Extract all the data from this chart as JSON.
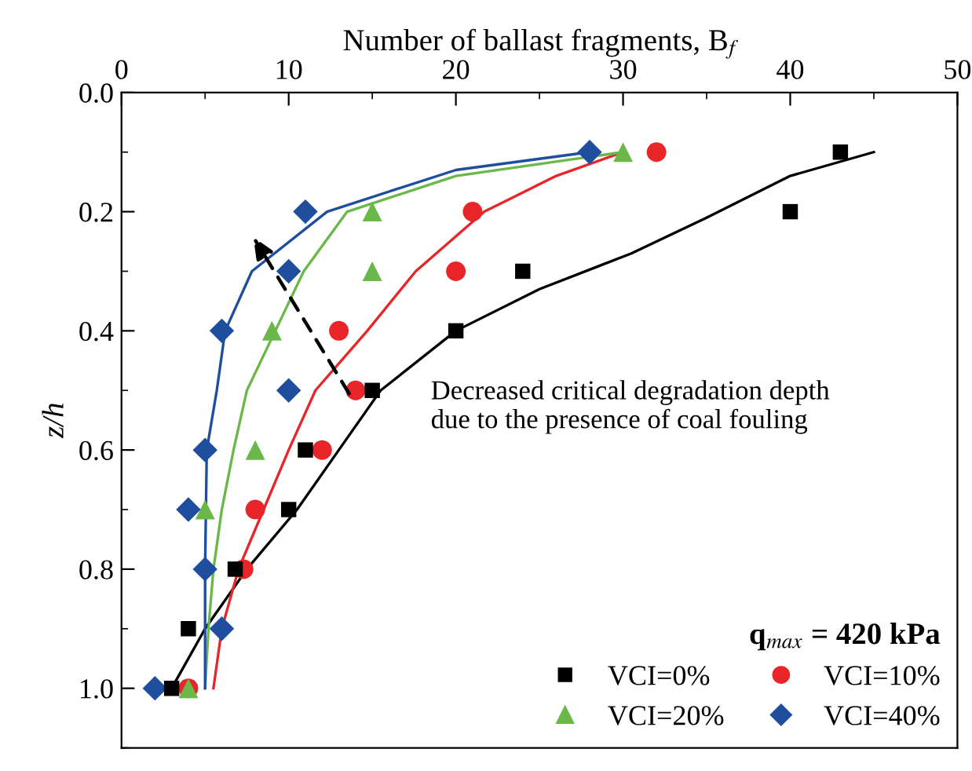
{
  "chart_data": {
    "type": "scatter",
    "xlabel": "Number of ballast fragments, B$_{f}$",
    "ylabel": "z/h",
    "legend_title": "q$_{max}$ = 420 kPa",
    "legend": "bottom right",
    "xlim": [
      0,
      50
    ],
    "xticks": [
      0,
      10,
      20,
      30,
      40,
      50
    ],
    "ylim": [
      1.1,
      0.0
    ],
    "yticks": [
      {
        "value": 0,
        "label": "0.0"
      },
      {
        "value": 0.2,
        "label": "0.2"
      },
      {
        "value": 0.4,
        "label": "0.4"
      },
      {
        "value": 0.6,
        "label": "0.6"
      },
      {
        "value": 0.8,
        "label": "0.8"
      },
      {
        "value": 1.0,
        "label": "1.0"
      }
    ],
    "annotations": [
      "Decreased critical degradation depth\ndue to the presence of coal fouling"
    ],
    "series": [
      {
        "name": "VCI=0%",
        "color": "#000000",
        "marker": "square",
        "x": [
          43,
          40,
          24,
          20,
          15,
          11,
          10,
          6.8,
          4,
          3
        ],
        "values": [
          0.1,
          0.2,
          0.3,
          0.4,
          0.5,
          0.6,
          0.7,
          0.8,
          0.9,
          1.0
        ]
      },
      {
        "name": "VCI=10%",
        "color": "#e8262a",
        "marker": "circle",
        "x": [
          32,
          21,
          20,
          13,
          14,
          12,
          8,
          7.3,
          4
        ],
        "values": [
          0.1,
          0.2,
          0.3,
          0.4,
          0.5,
          0.6,
          0.7,
          0.8,
          1.0
        ]
      },
      {
        "name": "VCI=20%",
        "color": "#6ab849",
        "marker": "triangle",
        "x": [
          30,
          15,
          15,
          9,
          8,
          5,
          4
        ],
        "values": [
          0.1,
          0.2,
          0.3,
          0.4,
          0.6,
          0.7,
          1.0
        ]
      },
      {
        "name": "VCI=40%",
        "color": "#1f4e9e",
        "marker": "diamond",
        "x": [
          28,
          11,
          10,
          6,
          10,
          5,
          4,
          5,
          6,
          2
        ],
        "values": [
          0.1,
          0.2,
          0.3,
          0.4,
          0.5,
          0.6,
          0.7,
          0.8,
          0.9,
          1.0
        ]
      },
      {
        "type": "line",
        "color": "#000000",
        "x": [
          3,
          5,
          7.5,
          10.5,
          13,
          15.5,
          20,
          25,
          30.5,
          35,
          40,
          45
        ],
        "values": [
          1.0,
          0.9,
          0.8,
          0.7,
          0.6,
          0.5,
          0.4,
          0.33,
          0.27,
          0.21,
          0.14,
          0.1
        ]
      },
      {
        "type": "line",
        "color": "#e8262a",
        "x": [
          5.5,
          6,
          7,
          8.5,
          10,
          11.6,
          14.7,
          17.6,
          21.7,
          26,
          30
        ],
        "values": [
          1.0,
          0.9,
          0.8,
          0.7,
          0.6,
          0.5,
          0.4,
          0.3,
          0.2,
          0.14,
          0.1
        ]
      },
      {
        "type": "line",
        "color": "#6ab849",
        "x": [
          5,
          5.2,
          5.5,
          6,
          6.7,
          7.5,
          9.2,
          10.9,
          13.5,
          20,
          30
        ],
        "values": [
          1.0,
          0.9,
          0.8,
          0.7,
          0.6,
          0.5,
          0.4,
          0.3,
          0.2,
          0.14,
          0.1
        ]
      },
      {
        "type": "line",
        "color": "#1f4e9e",
        "x": [
          5,
          5,
          5.1,
          5.7,
          6.2,
          7.8,
          12.3,
          20,
          28
        ],
        "values": [
          1.0,
          0.8,
          0.6,
          0.5,
          0.4,
          0.3,
          0.2,
          0.13,
          0.1
        ]
      }
    ]
  }
}
